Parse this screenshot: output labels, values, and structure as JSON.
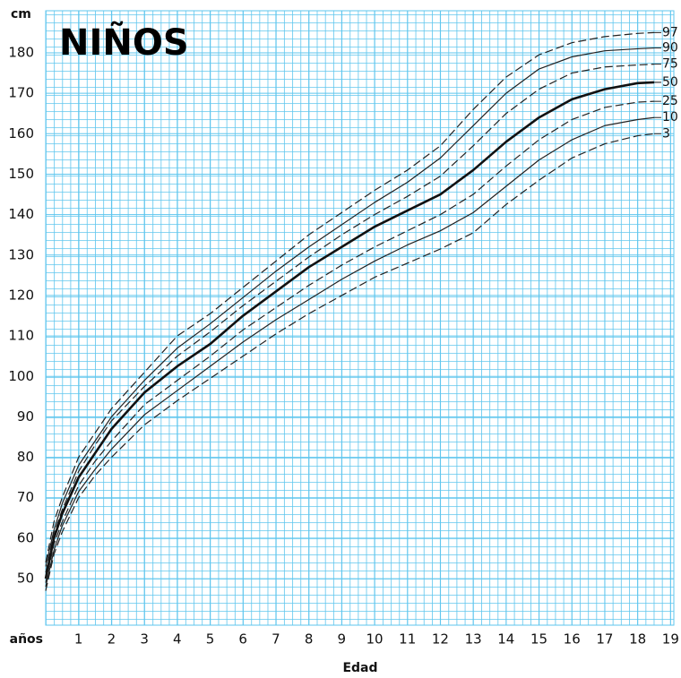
{
  "chart_data": {
    "type": "line",
    "title": "NIÑOS",
    "x_label": "Edad",
    "x_label_prefix": "años",
    "y_label": "cm",
    "x": [
      0,
      0.25,
      0.5,
      1,
      1.5,
      2,
      3,
      4,
      5,
      6,
      7,
      8,
      9,
      10,
      11,
      12,
      13,
      14,
      15,
      16,
      17,
      18,
      18.5
    ],
    "series": [
      {
        "name": "97",
        "color": "#222222",
        "dashed": true,
        "width": 1.2,
        "values": [
          54,
          64,
          70,
          80,
          86,
          92,
          101,
          110,
          115.5,
          122,
          128.5,
          135,
          140.5,
          146,
          151,
          157,
          166,
          174,
          179.5,
          182.5,
          184,
          184.8,
          185
        ]
      },
      {
        "name": "90",
        "color": "#222222",
        "dashed": false,
        "width": 1.2,
        "values": [
          53,
          62,
          68.5,
          78,
          84,
          90,
          99,
          107,
          113,
          119.5,
          126,
          132,
          137.5,
          143,
          148,
          154,
          162,
          170,
          176,
          179,
          180.5,
          181,
          181.2
        ]
      },
      {
        "name": "75",
        "color": "#222222",
        "dashed": true,
        "width": 1.2,
        "values": [
          51.5,
          61,
          67,
          76.5,
          83,
          89,
          97.5,
          105,
          111,
          117.5,
          123.5,
          129.5,
          135,
          140,
          144.5,
          149.5,
          157,
          165,
          171,
          175,
          176.5,
          177,
          177.2
        ]
      },
      {
        "name": "50",
        "color": "#111111",
        "dashed": false,
        "width": 2.6,
        "values": [
          50,
          60,
          66,
          75,
          81,
          87,
          96,
          102.5,
          108,
          115,
          121,
          127,
          132,
          137,
          141,
          145,
          151,
          158,
          164,
          168.5,
          171,
          172.5,
          172.7
        ]
      },
      {
        "name": "25",
        "color": "#222222",
        "dashed": true,
        "width": 1.2,
        "values": [
          49,
          58.5,
          64,
          73,
          79,
          84,
          93,
          99,
          105,
          111.5,
          117,
          122.5,
          127.5,
          132,
          136,
          140,
          145,
          152,
          158.5,
          163.5,
          166.5,
          167.8,
          168
        ]
      },
      {
        "name": "10",
        "color": "#222222",
        "dashed": false,
        "width": 1.2,
        "values": [
          48,
          57,
          63,
          71.5,
          77,
          82,
          90.5,
          96.5,
          102.5,
          108.5,
          114,
          119,
          124,
          128.5,
          132.5,
          136,
          140.5,
          147,
          153.5,
          158.5,
          162,
          163.5,
          164
        ]
      },
      {
        "name": "3",
        "color": "#222222",
        "dashed": true,
        "width": 1.2,
        "values": [
          47,
          56,
          61.5,
          70,
          75.5,
          80,
          88,
          94,
          99.5,
          105,
          110.5,
          115.5,
          120,
          124.5,
          128,
          131.5,
          135.5,
          142.5,
          148.5,
          154,
          157.5,
          159.5,
          160
        ]
      }
    ],
    "xlim": [
      0,
      19.1
    ],
    "ylim": [
      38.5,
      190.4
    ],
    "xticks": [
      1,
      2,
      3,
      4,
      5,
      6,
      7,
      8,
      9,
      10,
      11,
      12,
      13,
      14,
      15,
      16,
      17,
      18,
      19
    ],
    "yticks": [
      50,
      60,
      70,
      80,
      90,
      100,
      110,
      120,
      130,
      140,
      150,
      160,
      170,
      180
    ],
    "grid": true,
    "grid_color": "#5ec6ee"
  }
}
